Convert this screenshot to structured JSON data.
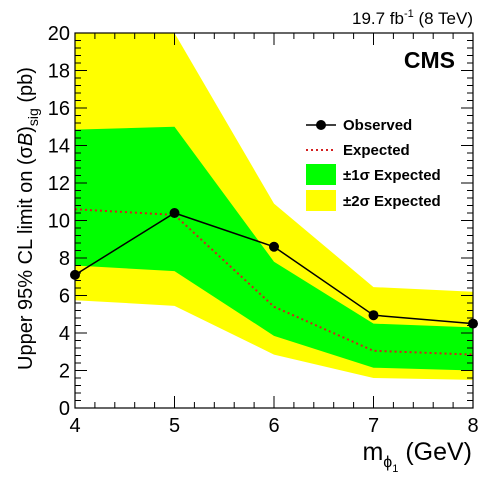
{
  "chart_data": {
    "type": "line",
    "lumi_label": {
      "main": "19.7 fb",
      "sup": "-1",
      "tail": " (8 TeV)"
    },
    "experiment_label": "CMS",
    "xlabel": {
      "main": "m",
      "sub": "ϕ",
      "subsub": "1",
      "tail": " (GeV)"
    },
    "ylabel": {
      "part1": "Upper 95% CL limit on (σ",
      "italic": "B",
      "part2": ")",
      "sub": "sig",
      "part3": " (pb)"
    },
    "xlim": [
      4,
      8
    ],
    "ylim": [
      0,
      20
    ],
    "x_ticks": [
      4,
      5,
      6,
      7,
      8
    ],
    "y_ticks": [
      0,
      2,
      4,
      6,
      8,
      10,
      12,
      14,
      16,
      18,
      20
    ],
    "x": [
      4,
      5,
      6,
      7,
      8
    ],
    "observed": {
      "name": "Observed",
      "values": [
        7.1,
        10.4,
        8.6,
        4.95,
        4.5
      ],
      "color": "#000000"
    },
    "expected": {
      "name": "Expected",
      "values": [
        10.6,
        10.3,
        5.4,
        3.05,
        2.85
      ],
      "color": "#d42020"
    },
    "band_1sigma": {
      "name": "±1σ Expected",
      "low": [
        7.6,
        7.3,
        3.85,
        2.15,
        2.0
      ],
      "high": [
        14.85,
        15.0,
        7.8,
        4.5,
        4.3
      ],
      "color": "#00ff00"
    },
    "band_2sigma": {
      "name": "±2σ Expected",
      "low": [
        5.75,
        5.45,
        2.85,
        1.6,
        1.5
      ],
      "high": [
        20.0,
        20.0,
        10.9,
        6.45,
        6.2
      ],
      "color": "#ffff00"
    },
    "legend": {
      "placement": "right",
      "entries": [
        "Observed",
        "Expected",
        "±1σ Expected",
        "±2σ Expected"
      ]
    },
    "grid": false
  }
}
